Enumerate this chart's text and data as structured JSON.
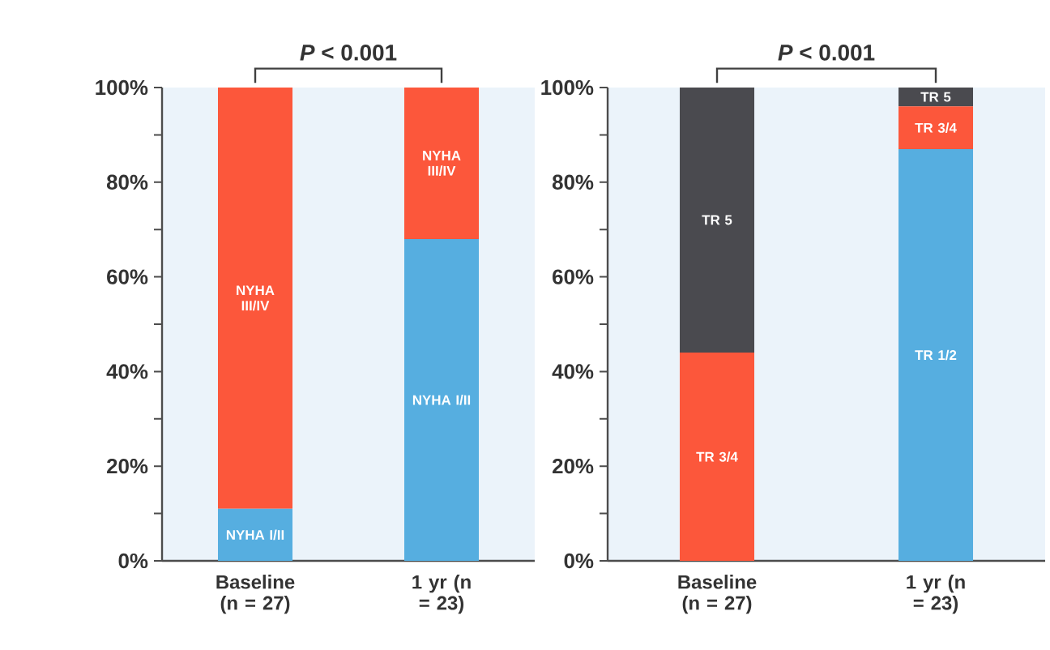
{
  "chart_data": [
    {
      "type": "bar",
      "stacked": true,
      "categories": [
        "Baseline (n = 27)",
        "1 yr (n = 23)"
      ],
      "series": [
        {
          "name": "NYHA I/II",
          "color": "#56aee0",
          "values": [
            11,
            68
          ]
        },
        {
          "name": "NYHA III/IV",
          "color": "#fc573b",
          "values": [
            89,
            32
          ]
        }
      ],
      "ylim": [
        0,
        100
      ],
      "yticks": [
        {
          "value": 0,
          "label": "0%"
        },
        {
          "value": 10,
          "label": null
        },
        {
          "value": 20,
          "label": "20%"
        },
        {
          "value": 30,
          "label": null
        },
        {
          "value": 40,
          "label": "40%"
        },
        {
          "value": 50,
          "label": null
        },
        {
          "value": 60,
          "label": "60%"
        },
        {
          "value": 70,
          "label": null
        },
        {
          "value": 80,
          "label": "80%"
        },
        {
          "value": 90,
          "label": null
        },
        {
          "value": 100,
          "label": "100%"
        }
      ],
      "annotations": [
        "*P* < 0.001"
      ],
      "grid": false
    },
    {
      "type": "bar",
      "stacked": true,
      "categories": [
        "Baseline (n = 27)",
        "1 yr (n = 23)"
      ],
      "series": [
        {
          "name": "TR 1/2",
          "color": "#56aee0",
          "values": [
            0,
            87
          ]
        },
        {
          "name": "TR 3/4",
          "color": "#fc573b",
          "values": [
            44,
            9
          ]
        },
        {
          "name": "TR 5",
          "color": "#4a4a4f",
          "values": [
            56,
            4
          ]
        }
      ],
      "ylim": [
        0,
        100
      ],
      "yticks": [
        {
          "value": 0,
          "label": "0%"
        },
        {
          "value": 10,
          "label": null
        },
        {
          "value": 20,
          "label": "20%"
        },
        {
          "value": 30,
          "label": null
        },
        {
          "value": 40,
          "label": "40%"
        },
        {
          "value": 50,
          "label": null
        },
        {
          "value": 60,
          "label": "60%"
        },
        {
          "value": 70,
          "label": null
        },
        {
          "value": 80,
          "label": "80%"
        },
        {
          "value": 90,
          "label": null
        },
        {
          "value": 100,
          "label": "100%"
        }
      ],
      "annotations": [
        "*P* < 0.001"
      ],
      "grid": false
    }
  ]
}
